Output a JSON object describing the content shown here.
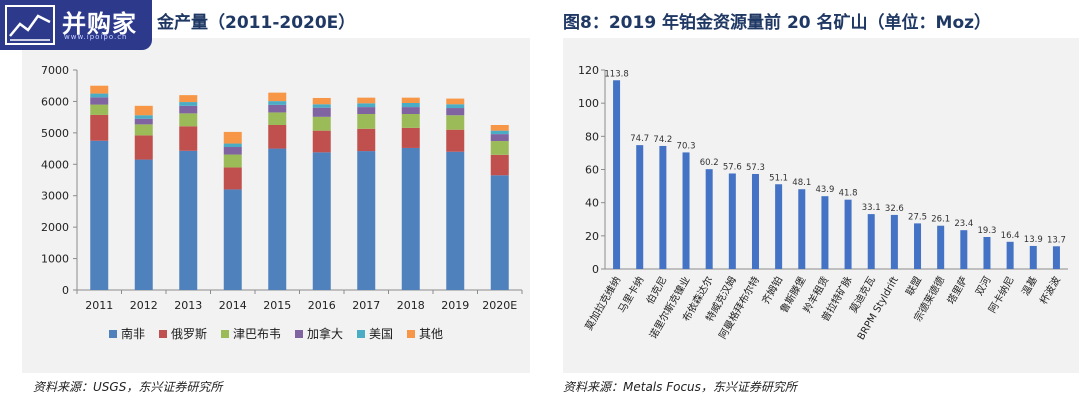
{
  "logo": {
    "text": "并购家",
    "sub": "www.ipoipo.cn"
  },
  "left": {
    "title": "金产量（2011-2020E）",
    "source": "资料来源：USGS，东兴证券研究所"
  },
  "right": {
    "title": "图8：2019 年铂金资源量前 20 名矿山（单位：Moz）",
    "source": "资料来源：Metals Focus，东兴证券研究所"
  },
  "chart_data": [
    {
      "type": "bar",
      "stacked": true,
      "categories": [
        "2011",
        "2012",
        "2013",
        "2014",
        "2015",
        "2016",
        "2017",
        "2018",
        "2019",
        "2020E"
      ],
      "ylim": [
        0,
        7000
      ],
      "yticks": [
        0,
        1000,
        2000,
        3000,
        4000,
        5000,
        6000,
        7000
      ],
      "legend_position": "bottom",
      "grid": false,
      "series": [
        {
          "name": "南非",
          "color": "#4f81bd",
          "values": [
            4750,
            4150,
            4430,
            3200,
            4500,
            4380,
            4420,
            4520,
            4400,
            3650
          ]
        },
        {
          "name": "俄罗斯",
          "color": "#c0504d",
          "values": [
            820,
            770,
            780,
            700,
            750,
            690,
            710,
            640,
            700,
            650
          ]
        },
        {
          "name": "津巴布韦",
          "color": "#9bbb59",
          "values": [
            330,
            350,
            410,
            410,
            400,
            440,
            470,
            440,
            460,
            440
          ]
        },
        {
          "name": "加拿大",
          "color": "#8064a2",
          "values": [
            230,
            180,
            240,
            240,
            240,
            290,
            220,
            220,
            230,
            220
          ]
        },
        {
          "name": "美国",
          "color": "#4bacc6",
          "values": [
            120,
            110,
            120,
            110,
            120,
            110,
            120,
            130,
            120,
            110
          ]
        },
        {
          "name": "其他",
          "color": "#f79646",
          "values": [
            250,
            300,
            220,
            370,
            270,
            200,
            180,
            170,
            180,
            180
          ]
        }
      ]
    },
    {
      "type": "bar",
      "categories": [
        "莫加拉克维纳",
        "马里卡纳",
        "伯克尼",
        "诺里尔斯克镍业",
        "布依森达尔",
        "特威克汉姆",
        "阿曼格拜布尔特",
        "齐姆铂",
        "鲁斯滕堡",
        "羚羊租赁",
        "普拉特矿脉",
        "莫迪克瓦",
        "BRPM Styldrift",
        "联盟",
        "宗德莱德德",
        "塔里萨",
        "双河",
        "阿卡纳尼",
        "温基",
        "杯波波"
      ],
      "values": [
        113.8,
        74.7,
        74.2,
        70.3,
        60.2,
        57.6,
        57.3,
        51.1,
        48.1,
        43.9,
        41.8,
        33.1,
        32.6,
        27.5,
        26.1,
        23.4,
        19.3,
        16.4,
        13.9,
        13.7
      ],
      "data_labels": [
        "113.8",
        "74.7",
        "74.2",
        "70.3",
        "60.2",
        "57.6",
        "57.3",
        "51.1",
        "48.1",
        "43.9",
        "41.8",
        "33.1",
        "32.6",
        "27.5",
        "26.1",
        "23.4",
        "19.3",
        "16.4",
        "13.9",
        "13.7"
      ],
      "ylim": [
        0,
        120
      ],
      "yticks": [
        0,
        20,
        40,
        60,
        80,
        100,
        120
      ],
      "color": "#4472c4",
      "grid": false
    }
  ]
}
